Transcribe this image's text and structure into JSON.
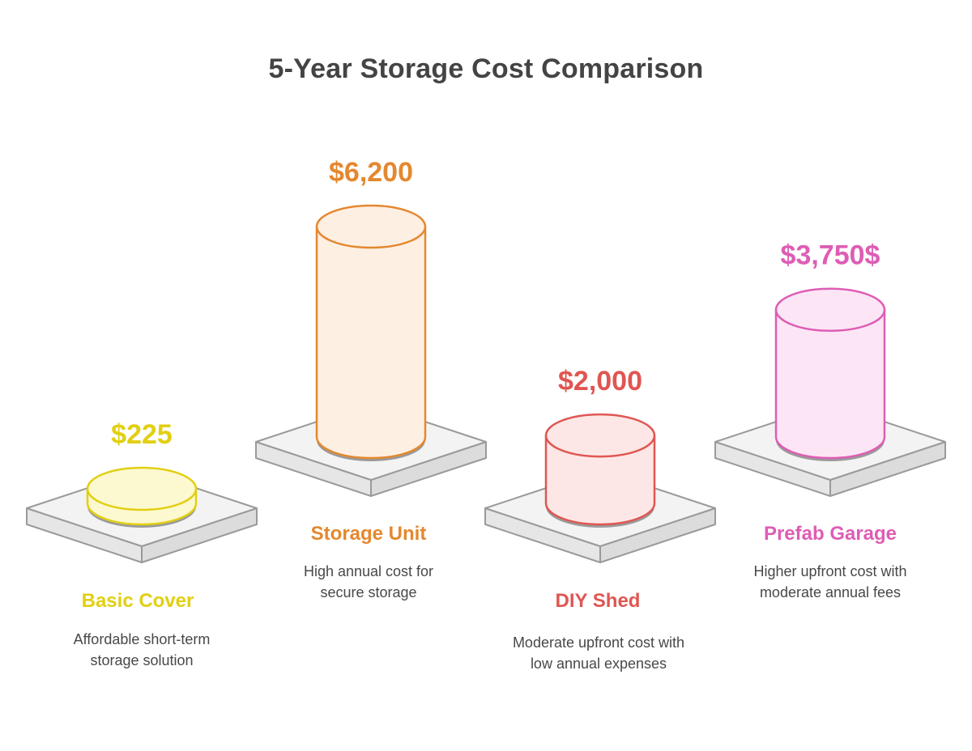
{
  "chart_data": {
    "type": "bar",
    "style": "3d-cylinder-on-platform",
    "title": "5-Year Storage Cost Comparison",
    "xlabel": "",
    "ylabel": "",
    "categories": [
      "Basic Cover",
      "Storage Unit",
      "DIY Shed",
      "Prefab Garage"
    ],
    "values": [
      225,
      6200,
      2000,
      3750
    ],
    "value_labels": [
      "$225",
      "$6,200",
      "$2,000",
      "$3,750$"
    ],
    "descriptions": [
      "Affordable short-term storage solution",
      "High annual cost for secure storage",
      "Moderate upfront cost with low annual expenses",
      "Higher upfront cost with moderate annual fees"
    ],
    "colors": {
      "stroke": [
        "#E2CF12",
        "#E4882F",
        "#E05652",
        "#DE5DB5"
      ],
      "fill": [
        "#FCF9D0",
        "#FEEFE3",
        "#FDE7E6",
        "#FCE6F5"
      ],
      "platform_stroke": "#9A9A9A",
      "platform_fill": "#F3F3F3"
    }
  }
}
